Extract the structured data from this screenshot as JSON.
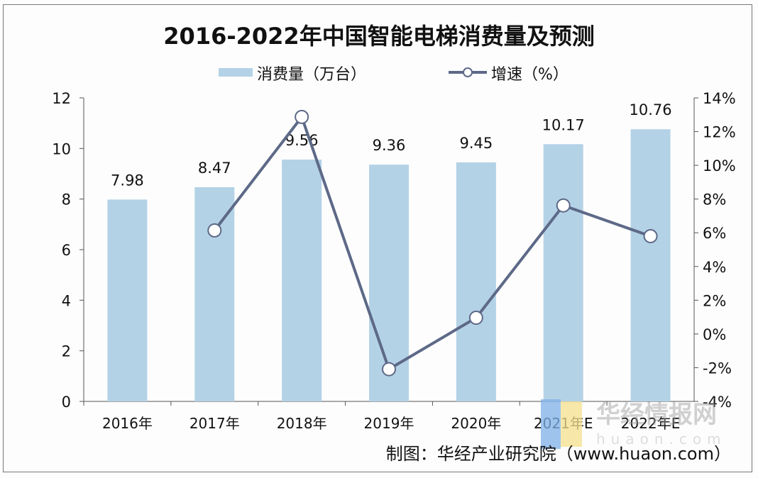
{
  "chart_data": {
    "type": "bar+line",
    "title": "2016-2022年中国智能电梯消费量及预测",
    "categories": [
      "2016年",
      "2017年",
      "2018年",
      "2019年",
      "2020年",
      "2021年E",
      "2022年E"
    ],
    "series": [
      {
        "name": "消费量（万台）",
        "type": "bar",
        "axis": "left",
        "values": [
          7.98,
          8.47,
          9.56,
          9.36,
          9.45,
          10.17,
          10.76
        ],
        "data_labels": [
          "7.98",
          "8.47",
          "9.56",
          "9.36",
          "9.45",
          "10.17",
          "10.76"
        ],
        "color": "#b4d2e6"
      },
      {
        "name": "增速（%）",
        "type": "line",
        "axis": "right",
        "values": [
          null,
          6.14,
          12.87,
          -2.09,
          0.96,
          7.62,
          5.8
        ],
        "color": "#5d6987",
        "marker": "open-circle"
      }
    ],
    "y_left": {
      "range": [
        0,
        12
      ],
      "ticks": [
        "0",
        "2",
        "4",
        "6",
        "8",
        "10",
        "12"
      ]
    },
    "y_right": {
      "range": [
        -4,
        14
      ],
      "ticks": [
        "-4%",
        "-2%",
        "0%",
        "2%",
        "4%",
        "6%",
        "8%",
        "10%",
        "12%",
        "14%"
      ]
    },
    "legend_position": "top",
    "grid": false
  },
  "source": "制图：华经产业研究院（www.huaon.com）",
  "watermark": {
    "text": "华经情报网",
    "sub": "huaon.com"
  }
}
